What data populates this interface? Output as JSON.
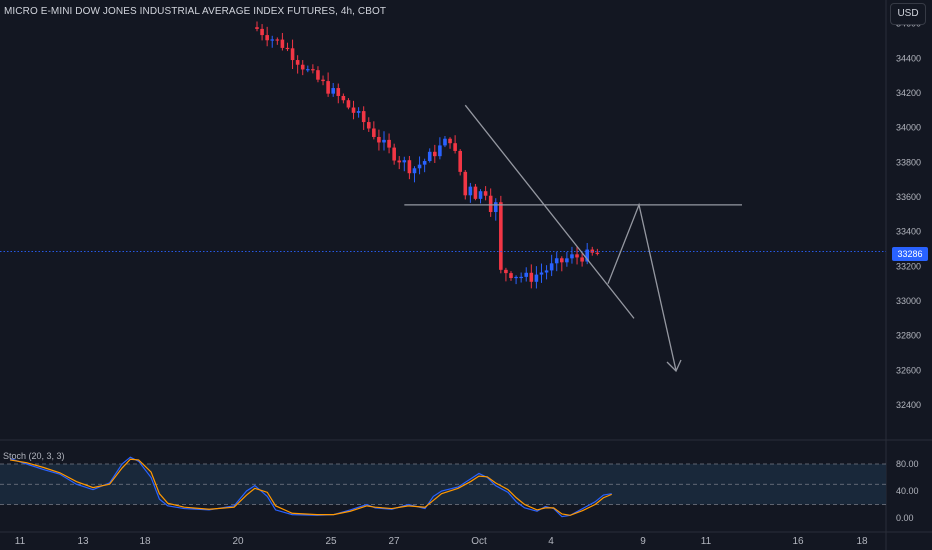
{
  "title": "MICRO E-MINI DOW JONES INDUSTRIAL AVERAGE INDEX FUTURES, 4h, CBOT",
  "currency_button": "USD",
  "last_price_label": "33286",
  "stoch_label": "Stoch (20, 3, 3)",
  "colors": {
    "background": "#131722",
    "up": "#2962ff",
    "down": "#f23645",
    "stoch_k": "#2962ff",
    "stoch_d": "#ff9800",
    "drawing": "#9598a1",
    "price_line": "#2962ff"
  },
  "chart_data": [
    {
      "type": "candlestick",
      "y_ticks": [
        "34600",
        "34400",
        "34200",
        "34000",
        "33800",
        "33600",
        "33400",
        "33200",
        "33000",
        "32800",
        "32600",
        "32400"
      ],
      "y_tick_values": [
        34600,
        34400,
        34200,
        34000,
        33800,
        33600,
        33400,
        33200,
        33000,
        32800,
        32600,
        32400
      ],
      "x_ticks": [
        "11",
        "13",
        "18",
        "20",
        "25",
        "27",
        "Oct",
        "4",
        "9",
        "11",
        "16",
        "18"
      ],
      "last_price": 33286,
      "trend_points": [
        [
          0.0,
          34580
        ],
        [
          6.0,
          34470
        ],
        [
          11.0,
          34310
        ],
        [
          16.0,
          34190
        ],
        [
          21.0,
          34050
        ],
        [
          26.0,
          33880
        ],
        [
          31.0,
          33760
        ],
        [
          34.0,
          33820
        ],
        [
          38.5,
          33940
        ],
        [
          42.0,
          33600
        ],
        [
          46.0,
          33640
        ],
        [
          48.5,
          33180
        ],
        [
          54.0,
          33130
        ],
        [
          62.0,
          33250
        ],
        [
          67.5,
          33270
        ]
      ],
      "annotations": {
        "support_level": 33555,
        "falling_wedge_top": [
          [
            38,
            34130
          ],
          [
            73,
            33050
          ]
        ],
        "wedge_bottom": [
          [
            62,
            33150
          ],
          [
            73,
            32890
          ]
        ],
        "projected_path": [
          [
            68,
            33090
          ],
          [
            75.5,
            33550
          ],
          [
            79,
            32600
          ]
        ]
      }
    },
    {
      "type": "line",
      "name": "Stoch (20, 3, 3)",
      "y_ticks": [
        "80.00",
        "40.00",
        "0.00"
      ],
      "y_tick_values": [
        80,
        40,
        0
      ],
      "levels": [
        80,
        50,
        20
      ],
      "k_points": [
        [
          0,
          88
        ],
        [
          2,
          80
        ],
        [
          4,
          72
        ],
        [
          6,
          65
        ],
        [
          8,
          50
        ],
        [
          10,
          42
        ],
        [
          12,
          52
        ],
        [
          13.5,
          80
        ],
        [
          14.5,
          90
        ],
        [
          15.5,
          84
        ],
        [
          17,
          60
        ],
        [
          18,
          28
        ],
        [
          19,
          18
        ],
        [
          21,
          14
        ],
        [
          24,
          12
        ],
        [
          27,
          18
        ],
        [
          28.5,
          40
        ],
        [
          29.5,
          48
        ],
        [
          31,
          32
        ],
        [
          32,
          12
        ],
        [
          34,
          5
        ],
        [
          37,
          4
        ],
        [
          39,
          5
        ],
        [
          41,
          12
        ],
        [
          43,
          20
        ],
        [
          44,
          15
        ],
        [
          46,
          13
        ],
        [
          48,
          20
        ],
        [
          50,
          14
        ],
        [
          51,
          32
        ],
        [
          52,
          40
        ],
        [
          54,
          46
        ],
        [
          55.5,
          58
        ],
        [
          56.5,
          66
        ],
        [
          57.5,
          60
        ],
        [
          58.5,
          48
        ],
        [
          60,
          38
        ],
        [
          61,
          24
        ],
        [
          62,
          15
        ],
        [
          63.5,
          10
        ],
        [
          64.5,
          17
        ],
        [
          65.5,
          14
        ],
        [
          66.5,
          2
        ],
        [
          67.5,
          4
        ],
        [
          69,
          14
        ],
        [
          70.5,
          24
        ],
        [
          71.5,
          34
        ],
        [
          72.5,
          36
        ]
      ],
      "d_points": [
        [
          0,
          86
        ],
        [
          2,
          82
        ],
        [
          4,
          75
        ],
        [
          6,
          67
        ],
        [
          8,
          54
        ],
        [
          10,
          45
        ],
        [
          12,
          50
        ],
        [
          13.5,
          74
        ],
        [
          14.5,
          87
        ],
        [
          15.5,
          86
        ],
        [
          17,
          68
        ],
        [
          18,
          36
        ],
        [
          19,
          22
        ],
        [
          21,
          16
        ],
        [
          24,
          13
        ],
        [
          27,
          16
        ],
        [
          28.5,
          34
        ],
        [
          29.5,
          44
        ],
        [
          31,
          38
        ],
        [
          32,
          18
        ],
        [
          34,
          7
        ],
        [
          37,
          5
        ],
        [
          39,
          5
        ],
        [
          41,
          10
        ],
        [
          43,
          18
        ],
        [
          44,
          16
        ],
        [
          46,
          14
        ],
        [
          48,
          18
        ],
        [
          50,
          16
        ],
        [
          51,
          26
        ],
        [
          52,
          36
        ],
        [
          54,
          44
        ],
        [
          55.5,
          54
        ],
        [
          56.5,
          62
        ],
        [
          57.5,
          61
        ],
        [
          58.5,
          52
        ],
        [
          60,
          42
        ],
        [
          61,
          30
        ],
        [
          62,
          20
        ],
        [
          63.5,
          12
        ],
        [
          64.5,
          15
        ],
        [
          65.5,
          15
        ],
        [
          66.5,
          6
        ],
        [
          67.5,
          4
        ],
        [
          69,
          11
        ],
        [
          70.5,
          20
        ],
        [
          71.5,
          30
        ],
        [
          72.5,
          35
        ]
      ]
    }
  ]
}
